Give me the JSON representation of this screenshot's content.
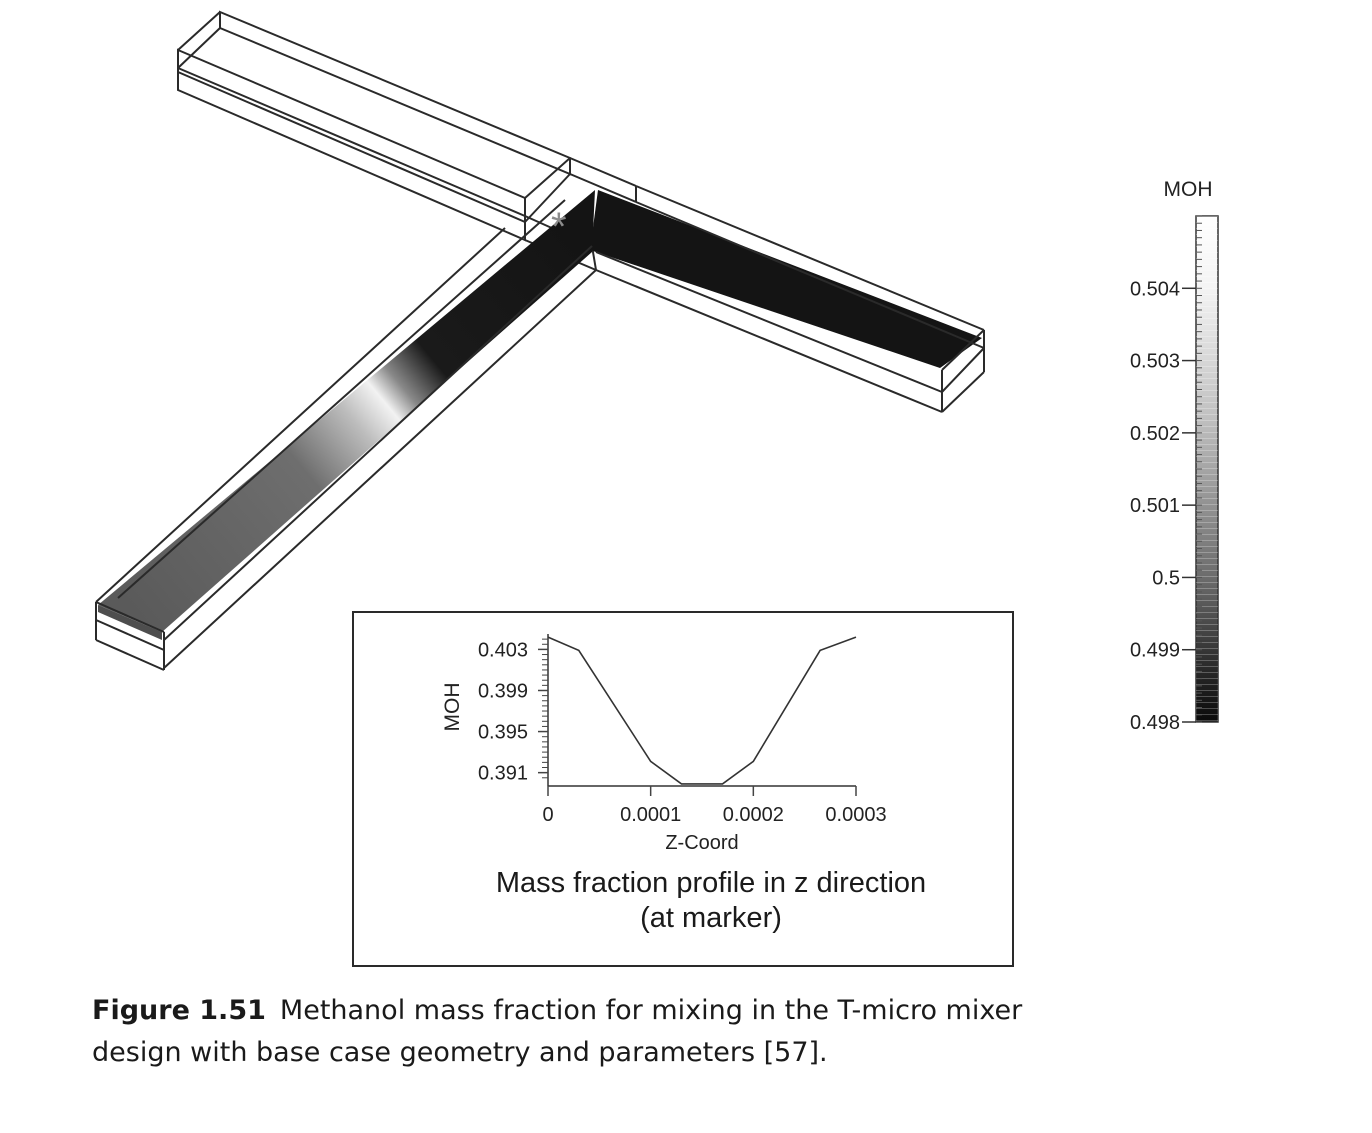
{
  "figure": {
    "label": "Figure 1.51",
    "caption": "Methanol mass fraction for mixing in the T-micro mixer design with base case geometry and parameters [57]."
  },
  "colorbar": {
    "title": "MOH",
    "tick_labels": [
      "0.504",
      "0.503",
      "0.502",
      "0.501",
      "0.5",
      "0.499",
      "0.498"
    ],
    "range": [
      0.498,
      0.505
    ],
    "colormap": "grayscale (0.498 = black, 0.505 = white)"
  },
  "marker": {
    "symbol": "*"
  },
  "inset": {
    "title_line1": "Mass fraction profile in z direction",
    "title_line2": "(at marker)"
  },
  "chart_data": {
    "type": "line",
    "title": "Mass fraction profile in z direction (at marker)",
    "xlabel": "Z-Coord",
    "ylabel": "MOH",
    "xlim": [
      0,
      0.0003
    ],
    "ylim": [
      0.3897,
      0.4045
    ],
    "x_tick_labels": [
      "0",
      "0.0001",
      "0.0002",
      "0.0003"
    ],
    "y_tick_labels": [
      "0.403",
      "0.399",
      "0.395",
      "0.391"
    ],
    "x_ticks": [
      0,
      0.0001,
      0.0002,
      0.0003
    ],
    "y_ticks": [
      0.403,
      0.399,
      0.395,
      0.391
    ],
    "grid": false,
    "series": [
      {
        "x": [
          0,
          3e-05,
          0.0001,
          0.00013,
          0.000155,
          0.00017,
          0.0002,
          0.000265,
          0.0003
        ],
        "y": [
          0.4042,
          0.4029,
          0.3921,
          0.3899,
          0.3899,
          0.3899,
          0.3921,
          0.4029,
          0.4042
        ]
      }
    ],
    "color": "#333333"
  },
  "colors": {
    "frame": "#2a2a2a",
    "fluid_dark": "#141414",
    "fluid_mid": "#5a5a5a"
  }
}
